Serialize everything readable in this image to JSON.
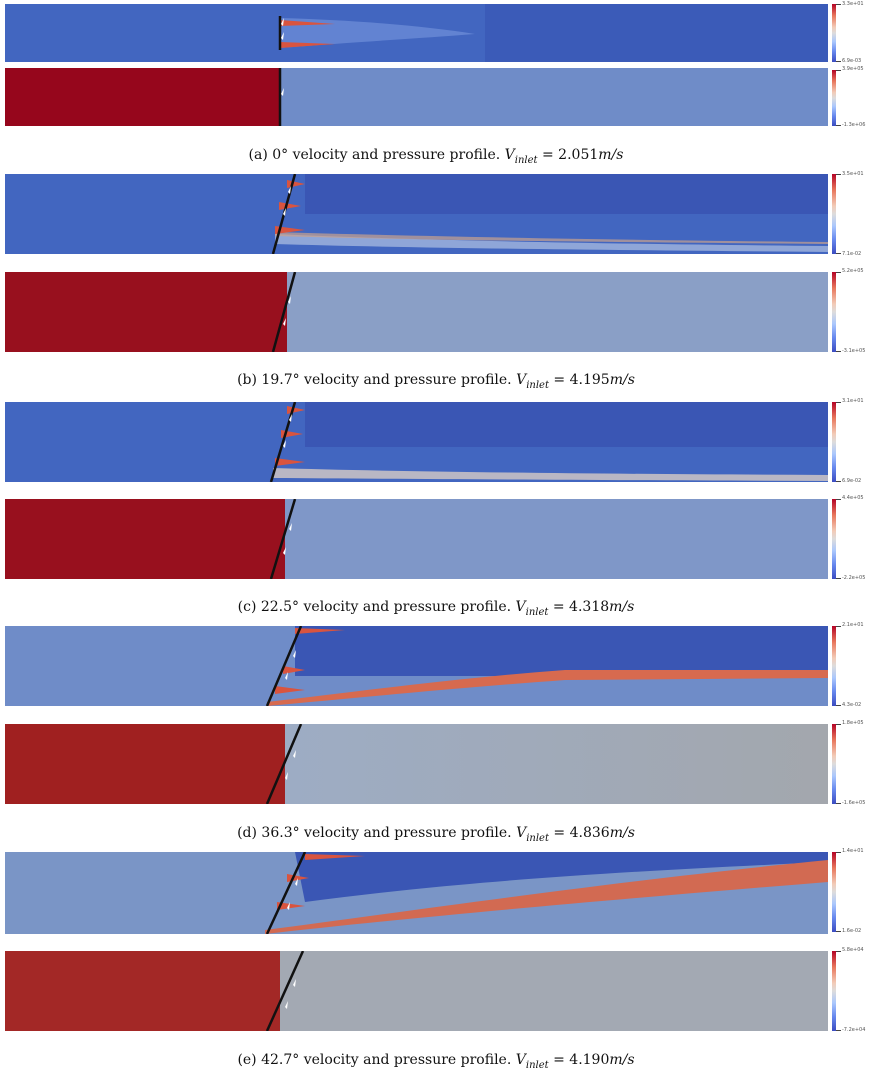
{
  "figures": [
    {
      "caption_prefix": "(a) 0° velocity and pressure profile.",
      "v_symbol": "V",
      "v_sub": "inlet",
      "v_eq": " = 2.051",
      "v_unit": "m/s",
      "velocity_colorbar": {
        "max": "3.3e+01",
        "min": "6.9e-03"
      },
      "pressure_colorbar": {
        "max": "3.9e+05",
        "min": "-1.3e+06"
      }
    },
    {
      "caption_prefix": "(b) 19.7° velocity and pressure profile.",
      "v_symbol": "V",
      "v_sub": "inlet",
      "v_eq": " = 4.195",
      "v_unit": "m/s",
      "velocity_colorbar": {
        "max": "3.5e+01",
        "min": "7.1e-02"
      },
      "pressure_colorbar": {
        "max": "5.2e+05",
        "min": "-3.1e+05"
      }
    },
    {
      "caption_prefix": "(c) 22.5° velocity and pressure profile.",
      "v_symbol": "V",
      "v_sub": "inlet",
      "v_eq": " = 4.318",
      "v_unit": "m/s",
      "velocity_colorbar": {
        "max": "3.1e+01",
        "min": "6.9e-02"
      },
      "pressure_colorbar": {
        "max": "4.4e+05",
        "min": "-2.2e+05"
      }
    },
    {
      "caption_prefix": "(d) 36.3° velocity and pressure profile.",
      "v_symbol": "V",
      "v_sub": "inlet",
      "v_eq": " = 4.836",
      "v_unit": "m/s",
      "velocity_colorbar": {
        "max": "2.1e+01",
        "min": "4.3e-02"
      },
      "pressure_colorbar": {
        "max": "1.8e+05",
        "min": "-1.6e+05"
      }
    },
    {
      "caption_prefix": "(e) 42.7° velocity and pressure profile.",
      "v_symbol": "V",
      "v_sub": "inlet",
      "v_eq": " = 4.190",
      "v_unit": "m/s",
      "velocity_colorbar": {
        "max": "1.4e+01",
        "min": "1.6e-02"
      },
      "pressure_colorbar": {
        "max": "5.8e+04",
        "min": "-7.2e+04"
      }
    }
  ],
  "colors": {
    "high": "#96061c",
    "mid": "#6f8cc8",
    "low": "#3a56b4",
    "neutral_gray_e": "#a3a9b3"
  }
}
